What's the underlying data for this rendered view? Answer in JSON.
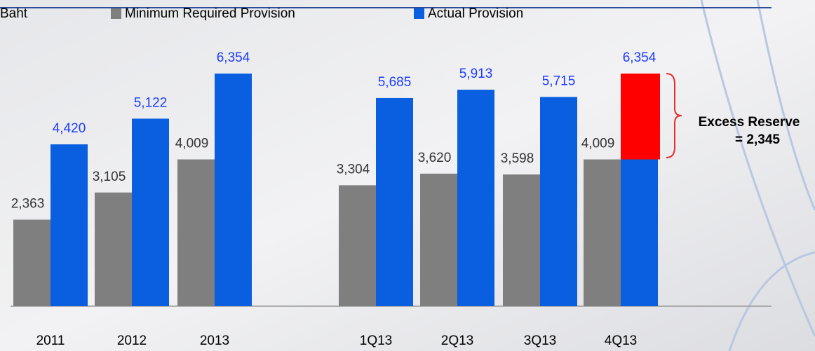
{
  "chart_data": {
    "type": "bar",
    "unit_label": "Baht",
    "categories": [
      "2011",
      "2012",
      "2013",
      "1Q13",
      "2Q13",
      "3Q13",
      "4Q13"
    ],
    "series": [
      {
        "name": "Minimum Required Provision",
        "color": "#7f7f7f",
        "values": [
          2363,
          3105,
          4009,
          3304,
          3620,
          3598,
          4009
        ],
        "value_labels": [
          "2,363",
          "3,105",
          "4,009",
          "3,304",
          "3,620",
          "3,598",
          "4,009"
        ]
      },
      {
        "name": "Actual Provision",
        "color": "#0a5fe0",
        "values": [
          4420,
          5122,
          6354,
          5685,
          5913,
          5715,
          6354
        ],
        "value_labels": [
          "4,420",
          "5,122",
          "6,354",
          "5,685",
          "5,913",
          "5,715",
          "6,354"
        ]
      }
    ],
    "excess": {
      "text": "Excess Reserve",
      "value": 2345,
      "label": "= 2,345",
      "color": "#ff0000"
    }
  }
}
